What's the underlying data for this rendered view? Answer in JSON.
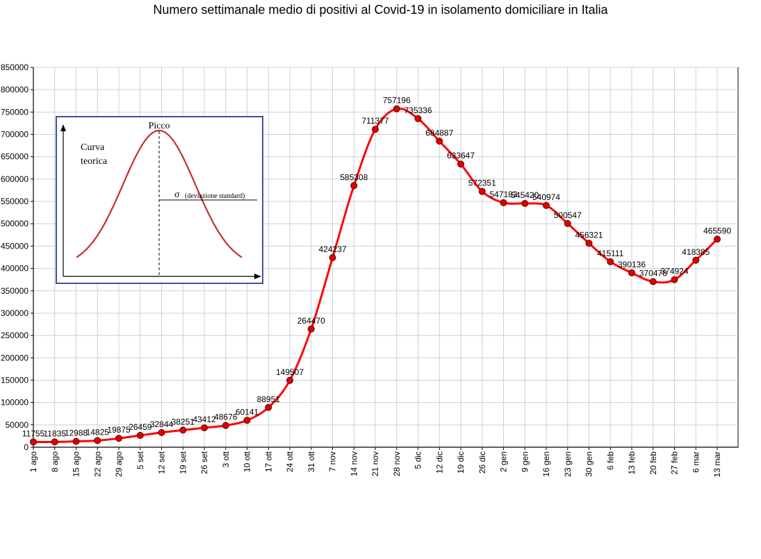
{
  "chart_data": {
    "type": "line",
    "title": "Numero settimanale medio di positivi al Covid-19  in isolamento domiciliare in Italia",
    "xlabel": "",
    "ylabel": "",
    "ylim": [
      0,
      850000
    ],
    "yticks": [
      0,
      50000,
      100000,
      150000,
      200000,
      250000,
      300000,
      350000,
      400000,
      450000,
      500000,
      550000,
      600000,
      650000,
      700000,
      750000,
      800000,
      850000
    ],
    "ytick_labels": [
      "0",
      "50000",
      "100000",
      "150000",
      "200000",
      "250000",
      "300000",
      "350000",
      "400000",
      "450000",
      "500000",
      "550000",
      "600000",
      "650000",
      "700000",
      "750000",
      "800000",
      "850000"
    ],
    "grid": true,
    "line_color": "#ff0000",
    "marker_color": "#dd0000",
    "categories": [
      "1 ago",
      "8 ago",
      "15 ago",
      "22 ago",
      "29 ago",
      "5 set",
      "12 set",
      "19 set",
      "26 set",
      "3 ott",
      "10 ott",
      "17 ott",
      "24 ott",
      "31 ott",
      "7 nov",
      "14 nov",
      "21 nov",
      "28 nov",
      "5 dic",
      "12 dic",
      "19 dic",
      "26 dic",
      "2 gen",
      "9 gen",
      "16 gen",
      "23 gen",
      "30 gen",
      "6 feb",
      "13 feb",
      "20 feb",
      "27 feb",
      "6 mar",
      "13 mar"
    ],
    "values": [
      11755,
      11835,
      12988,
      14825,
      19875,
      26459,
      32844,
      38251,
      43412,
      48676,
      60141,
      88951,
      149507,
      264470,
      424237,
      585308,
      711377,
      757196,
      735336,
      684887,
      633647,
      572351,
      547183,
      545420,
      540974,
      500547,
      456321,
      415111,
      390136,
      370478,
      374924,
      418385,
      465590
    ],
    "data_labels": [
      "11755",
      "11835",
      "12988",
      "14825",
      "19875",
      "26459",
      "32844",
      "38251",
      "43412",
      "48676",
      "60141",
      "88951",
      "149507",
      "264470",
      "424237",
      "585308",
      "711377",
      "757196",
      "735336",
      "684887",
      "633647",
      "572351",
      "547183",
      "545420",
      "540974",
      "500547",
      "456321",
      "415111",
      "390136",
      "370478",
      "374924",
      "418385",
      "465590"
    ]
  },
  "inset": {
    "peak_label": "Picco",
    "curve_label_line1": "Curva",
    "curve_label_line2": "teorica",
    "sigma_symbol": "σ",
    "sigma_label": "(deviazione standard)",
    "border_color": "#4050a0",
    "curve_color": "#c03030"
  }
}
